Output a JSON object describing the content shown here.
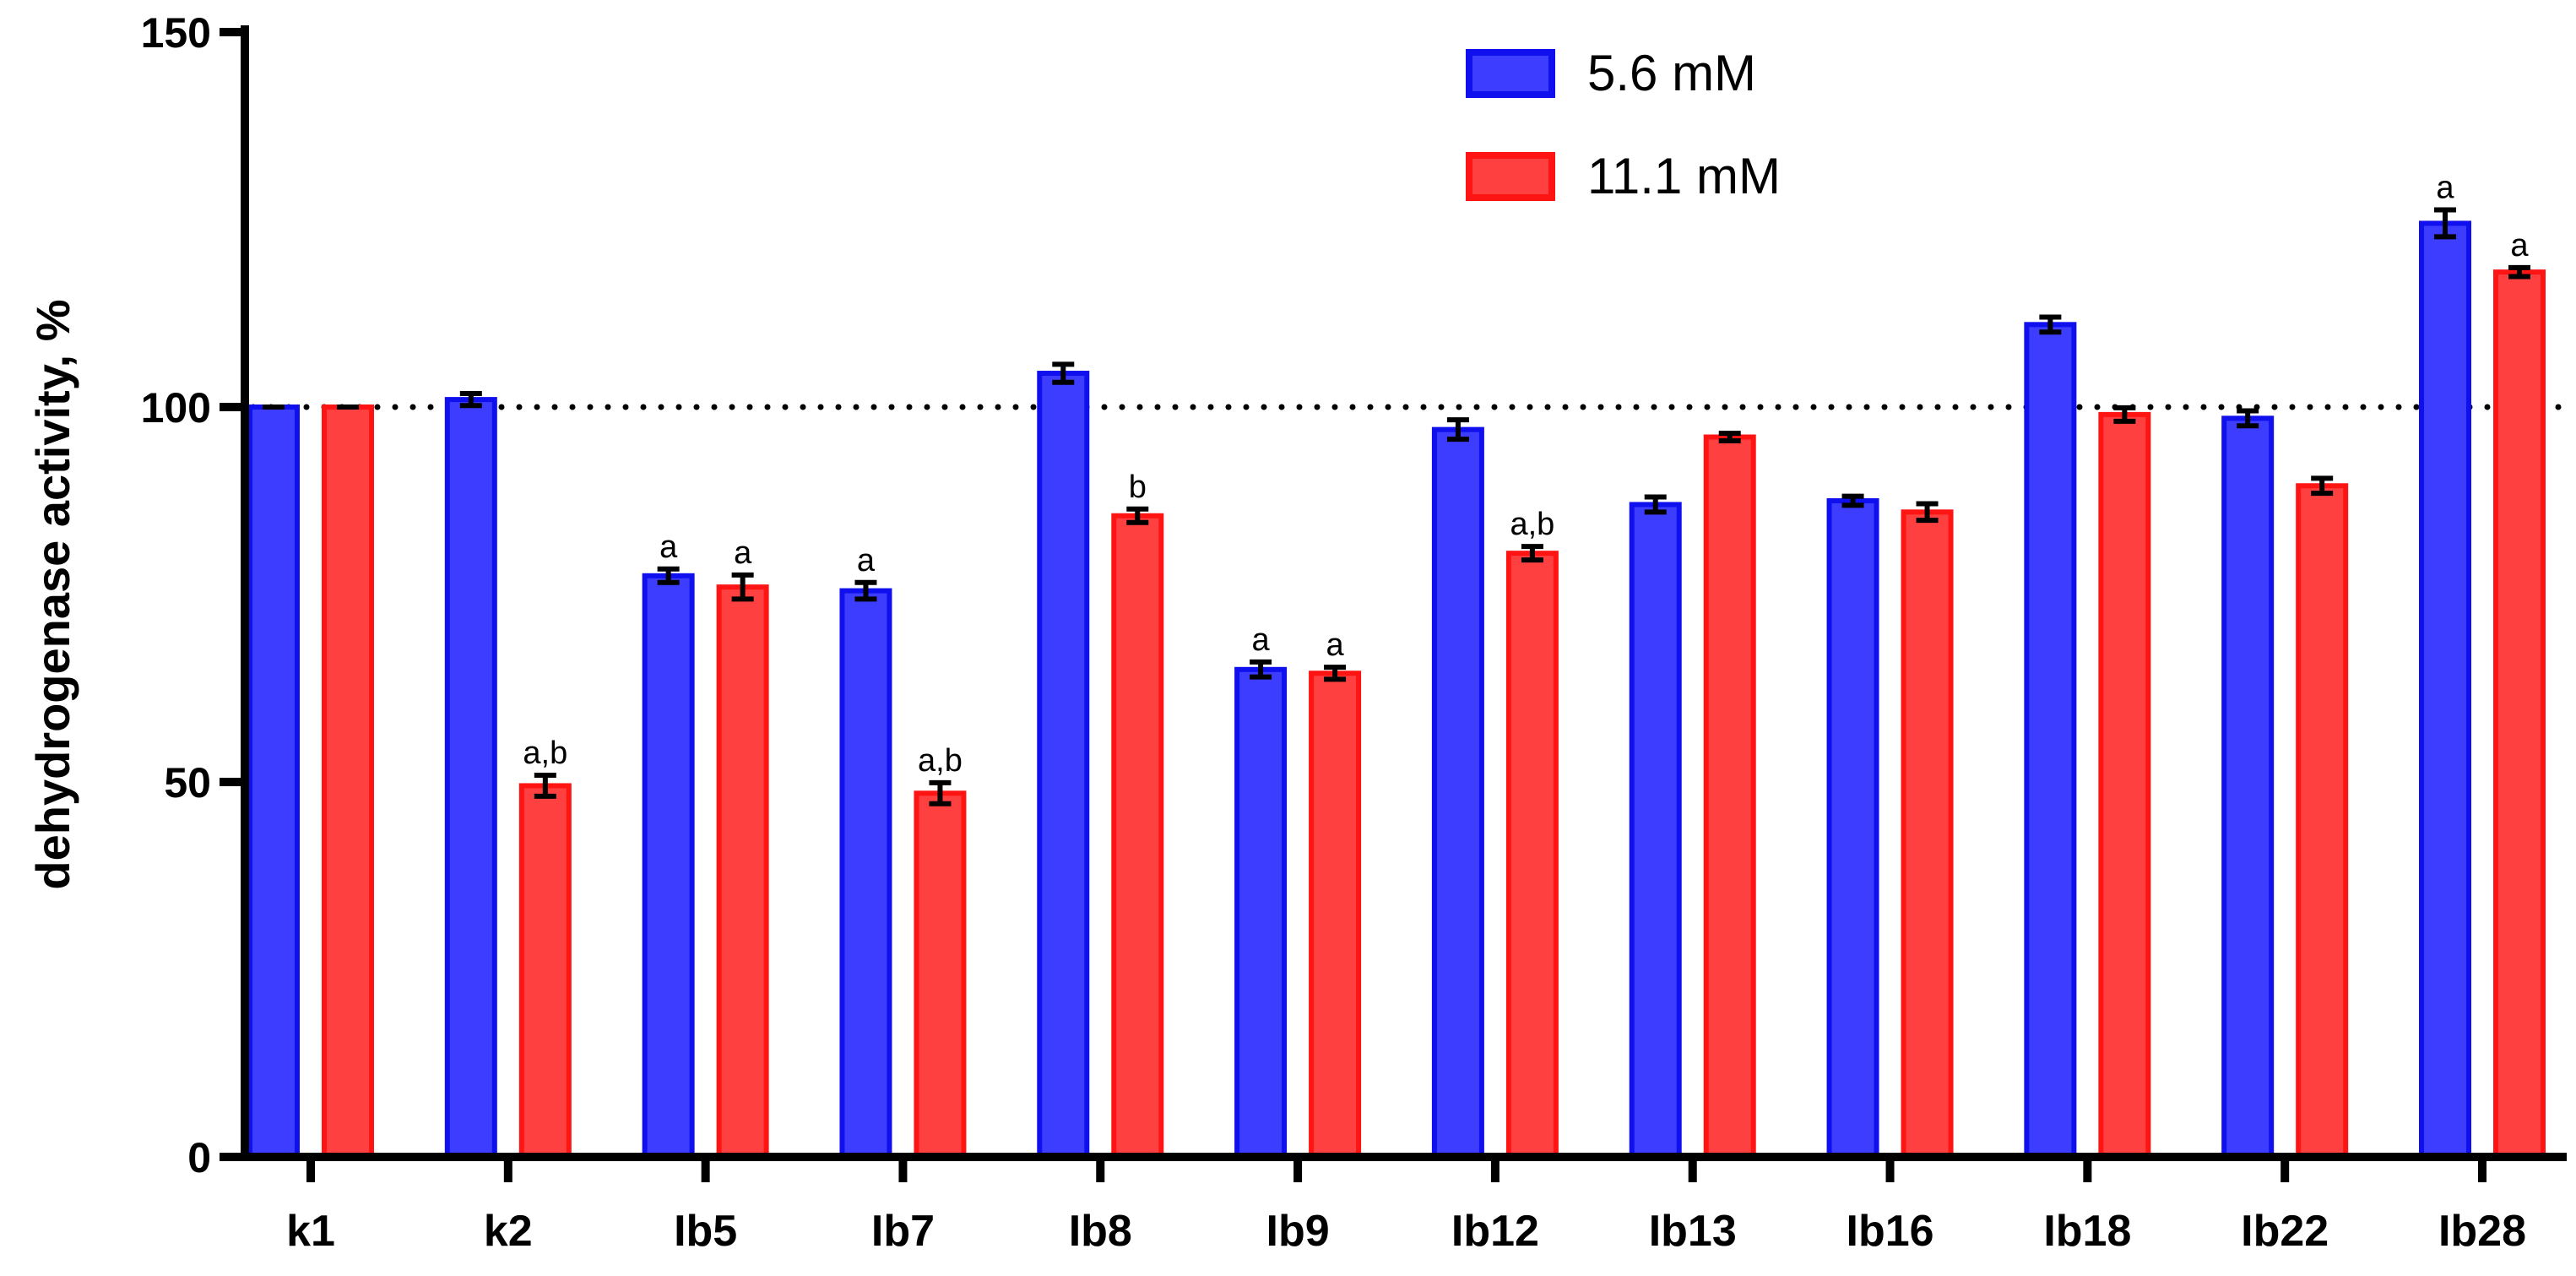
{
  "chart_data": {
    "type": "bar",
    "title": "",
    "xlabel": "",
    "ylabel": "dehydrogenase activity, %",
    "ylim": [
      0,
      150
    ],
    "yticks": [
      0,
      50,
      100,
      150
    ],
    "reference_line": 100,
    "categories": [
      "k1",
      "k2",
      "Ib5",
      "Ib7",
      "Ib8",
      "Ib9",
      "Ib12",
      "Ib13",
      "Ib16",
      "Ib18",
      "Ib22",
      "Ib28"
    ],
    "legend_position": "top-right",
    "series": [
      {
        "name": "5.6 mM",
        "color": "#3d3dff",
        "edge_color": "#1010ee",
        "values": [
          100,
          101,
          77.5,
          75.5,
          104.5,
          65,
          97,
          87,
          87.5,
          111,
          98.5,
          124.5
        ],
        "errors": [
          0,
          0.8,
          0.9,
          1.1,
          1.2,
          1.0,
          1.3,
          1.0,
          0.6,
          1.0,
          1.0,
          1.8
        ],
        "annotations": [
          "",
          "",
          "a",
          "a",
          "",
          "a",
          "",
          "",
          "",
          "",
          "",
          "a"
        ]
      },
      {
        "name": "11.1 mM",
        "color": "#ff4040",
        "edge_color": "#ff1414",
        "values": [
          100,
          49.5,
          76,
          48.5,
          85.5,
          64.5,
          80.5,
          96,
          86,
          99,
          89.5,
          118
        ],
        "errors": [
          0,
          1.4,
          1.6,
          1.4,
          0.9,
          0.8,
          0.9,
          0.5,
          1.1,
          0.9,
          1.0,
          0.6
        ],
        "annotations": [
          "",
          "a,b",
          "a",
          "a,b",
          "b",
          "a",
          "a,b",
          "",
          "",
          "",
          "",
          "a"
        ]
      }
    ]
  }
}
